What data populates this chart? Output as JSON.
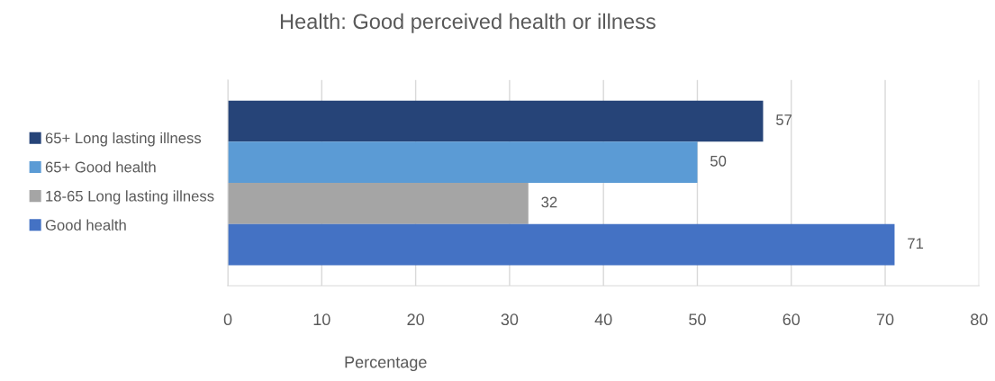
{
  "chart_data": {
    "type": "bar",
    "title": "Health: Good perceived health or illness",
    "xlabel": "Percentage",
    "orientation": "horizontal",
    "categories": [
      null
    ],
    "series": [
      {
        "name": "65+ Long lasting illness",
        "color": "#264478",
        "values": [
          57
        ]
      },
      {
        "name": "65+ Good health",
        "color": "#5b9bd5",
        "values": [
          50
        ]
      },
      {
        "name": "18-65 Long lasting illness",
        "color": "#a5a5a5",
        "values": [
          32
        ]
      },
      {
        "name": "Good health",
        "color": "#4472c4",
        "values": [
          71
        ]
      }
    ],
    "xlim": [
      0,
      80
    ],
    "xticks": [
      0,
      10,
      20,
      30,
      40,
      50,
      60,
      70,
      80
    ],
    "grid": "x",
    "legend": "left",
    "data_labels": true,
    "tick_labels": "x"
  }
}
